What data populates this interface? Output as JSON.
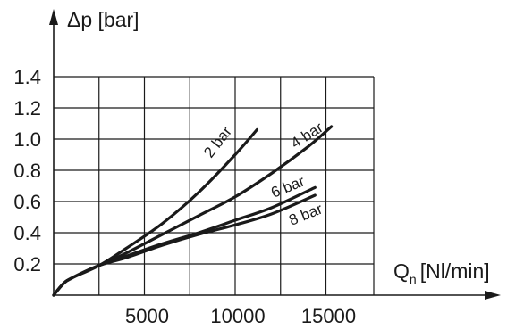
{
  "chart_data": {
    "type": "line",
    "xlabel": {
      "main": "Q",
      "sub": "n",
      "unit": "[Nl/min]"
    },
    "ylabel": "Δp [bar]",
    "xlim": [
      0,
      17000
    ],
    "ylim": [
      0,
      1.5
    ],
    "x_ticks": [
      5000,
      10000,
      15000
    ],
    "x_tick_labels": [
      "5000",
      "10000",
      "15000"
    ],
    "y_ticks": [
      0.2,
      0.4,
      0.6,
      0.8,
      1.0,
      1.2,
      1.4
    ],
    "y_tick_labels": [
      "0.2",
      "0.4",
      "0.6",
      "0.8",
      "1.0",
      "1.2",
      "1.4"
    ],
    "grid": true,
    "series": [
      {
        "name": "2 bar",
        "x": [
          0,
          500,
          1000,
          2500,
          4000,
          6000,
          8000,
          10000,
          11200
        ],
        "y": [
          0,
          0.07,
          0.11,
          0.19,
          0.3,
          0.46,
          0.66,
          0.9,
          1.06
        ]
      },
      {
        "name": "4 bar",
        "x": [
          0,
          500,
          1000,
          2500,
          4000,
          6000,
          8000,
          10000,
          12000,
          14000,
          15300
        ],
        "y": [
          0,
          0.07,
          0.11,
          0.19,
          0.27,
          0.39,
          0.51,
          0.63,
          0.78,
          0.95,
          1.08
        ]
      },
      {
        "name": "6 bar",
        "x": [
          0,
          500,
          1000,
          2500,
          4000,
          6000,
          8000,
          10000,
          12000,
          14400
        ],
        "y": [
          0,
          0.07,
          0.11,
          0.19,
          0.25,
          0.33,
          0.4,
          0.48,
          0.56,
          0.69
        ]
      },
      {
        "name": "8 bar",
        "x": [
          0,
          500,
          1000,
          2500,
          4000,
          6000,
          8000,
          10000,
          12000,
          14400
        ],
        "y": [
          0,
          0.07,
          0.11,
          0.19,
          0.24,
          0.32,
          0.39,
          0.45,
          0.52,
          0.64
        ]
      }
    ]
  }
}
